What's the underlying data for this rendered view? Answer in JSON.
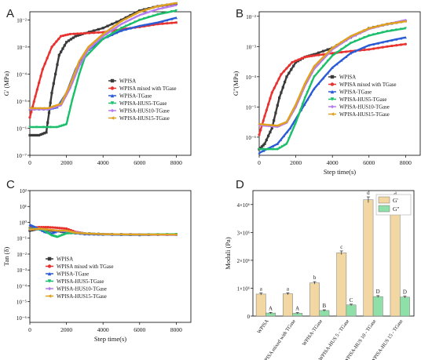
{
  "panels": {
    "A": {
      "letter": "A"
    },
    "B": {
      "letter": "B"
    },
    "C": {
      "letter": "C"
    },
    "D": {
      "letter": "D"
    }
  },
  "colors": {
    "WPISA": "#3a3a3a",
    "WPISA mixed with TGase": "#e8322f",
    "WPISA-TGase": "#2a5bd7",
    "WPISA-HUS5-TGase": "#1bbf6b",
    "WPISA-HUS10-TGase": "#b57bee",
    "WPISA-HUS15-TGase": "#e0a020",
    "bar_G1": "#f2d7a2",
    "bar_G2": "#8fe0a8"
  },
  "chart_data": [
    {
      "panel": "A",
      "type": "line",
      "title": "",
      "xlabel": "",
      "ylabel": "G' (MPa)",
      "xlim": [
        0,
        8800
      ],
      "ylim_log10": [
        -7,
        -1.7
      ],
      "y_scale": "log",
      "x_ticks": [
        0,
        2000,
        4000,
        6000,
        8000
      ],
      "y_tick_labels": [
        "10⁻⁷",
        "10⁻⁶",
        "10⁻⁵",
        "10⁻⁴",
        "10⁻³",
        "10⁻²"
      ],
      "legend_position": "center-right",
      "series": [
        {
          "name": "WPISA",
          "points": [
            [
              0,
              5.5e-07
            ],
            [
              500,
              5.5e-07
            ],
            [
              900,
              7e-07
            ],
            [
              1200,
              2e-05
            ],
            [
              1600,
              0.0005
            ],
            [
              2000,
              0.0015
            ],
            [
              2500,
              0.0025
            ],
            [
              3000,
              0.0032
            ],
            [
              4000,
              0.005
            ],
            [
              5000,
              0.01
            ],
            [
              6000,
              0.022
            ],
            [
              7000,
              0.032
            ],
            [
              8000,
              0.04
            ]
          ]
        },
        {
          "name": "WPISA mixed with TGase",
          "points": [
            [
              0,
              2.5e-06
            ],
            [
              300,
              1.5e-05
            ],
            [
              700,
              0.00015
            ],
            [
              1200,
              0.001
            ],
            [
              1700,
              0.0025
            ],
            [
              2200,
              0.003
            ],
            [
              3000,
              0.0032
            ],
            [
              4000,
              0.0035
            ],
            [
              5000,
              0.0045
            ],
            [
              6000,
              0.0055
            ],
            [
              7000,
              0.007
            ],
            [
              8000,
              0.008
            ]
          ]
        },
        {
          "name": "WPISA-TGase",
          "points": [
            [
              0,
              5e-06
            ],
            [
              1000,
              5e-06
            ],
            [
              1500,
              6e-06
            ],
            [
              2000,
              2e-05
            ],
            [
              2500,
              0.00015
            ],
            [
              3000,
              0.0006
            ],
            [
              4000,
              0.002
            ],
            [
              5000,
              0.004
            ],
            [
              6000,
              0.006
            ],
            [
              7000,
              0.008
            ],
            [
              8000,
              0.012
            ]
          ]
        },
        {
          "name": "WPISA-HUS5-TGase",
          "points": [
            [
              0,
              1.1e-06
            ],
            [
              1500,
              1.1e-06
            ],
            [
              2000,
              1.4e-06
            ],
            [
              2300,
              1e-05
            ],
            [
              2700,
              0.0001
            ],
            [
              3000,
              0.0004
            ],
            [
              4000,
              0.002
            ],
            [
              5000,
              0.005
            ],
            [
              6000,
              0.01
            ],
            [
              7000,
              0.016
            ],
            [
              8000,
              0.022
            ]
          ]
        },
        {
          "name": "WPISA-HUS10-TGase",
          "points": [
            [
              0,
              5e-06
            ],
            [
              1000,
              5e-06
            ],
            [
              1700,
              7e-06
            ],
            [
              2200,
              3e-05
            ],
            [
              2700,
              0.0002
            ],
            [
              3200,
              0.0008
            ],
            [
              4000,
              0.0025
            ],
            [
              5000,
              0.007
            ],
            [
              6000,
              0.015
            ],
            [
              7000,
              0.025
            ],
            [
              8000,
              0.035
            ]
          ]
        },
        {
          "name": "WPISA-HUS15-TGase",
          "points": [
            [
              0,
              5.5e-06
            ],
            [
              1000,
              5.5e-06
            ],
            [
              1700,
              8e-06
            ],
            [
              2200,
              4e-05
            ],
            [
              2700,
              0.0003
            ],
            [
              3200,
              0.001
            ],
            [
              4000,
              0.003
            ],
            [
              5000,
              0.009
            ],
            [
              6000,
              0.02
            ],
            [
              7000,
              0.032
            ],
            [
              8000,
              0.042
            ]
          ]
        }
      ]
    },
    {
      "panel": "B",
      "type": "line",
      "title": "",
      "xlabel": "Step time(s)",
      "ylabel": "G\"(MPa)",
      "xlim": [
        0,
        8800
      ],
      "ylim_log10": [
        -6.6,
        -1.85
      ],
      "y_scale": "log",
      "x_ticks": [
        0,
        2000,
        4000,
        6000,
        8000
      ],
      "y_tick_labels": [
        "10⁻⁶",
        "10⁻⁵",
        "10⁻⁴",
        "10⁻³",
        "10⁻²"
      ],
      "legend_position": "center-right",
      "series": [
        {
          "name": "WPISA",
          "points": [
            [
              0,
              4e-07
            ],
            [
              300,
              6e-07
            ],
            [
              700,
              2e-06
            ],
            [
              1100,
              2e-05
            ],
            [
              1500,
              0.0001
            ],
            [
              2000,
              0.0003
            ],
            [
              2500,
              0.00045
            ],
            [
              3000,
              0.00055
            ],
            [
              4000,
              0.0009
            ],
            [
              5000,
              0.002
            ],
            [
              6000,
              0.004
            ],
            [
              7000,
              0.0055
            ],
            [
              8000,
              0.007
            ]
          ]
        },
        {
          "name": "WPISA mixed with TGase",
          "points": [
            [
              0,
              1.2e-06
            ],
            [
              300,
              5e-06
            ],
            [
              700,
              3e-05
            ],
            [
              1200,
              0.00012
            ],
            [
              1800,
              0.0003
            ],
            [
              2500,
              0.00045
            ],
            [
              3000,
              0.0005
            ],
            [
              4000,
              0.0006
            ],
            [
              5000,
              0.0007
            ],
            [
              6000,
              0.0008
            ],
            [
              7000,
              0.001
            ],
            [
              8000,
              0.0012
            ]
          ]
        },
        {
          "name": "WPISA-TGase",
          "points": [
            [
              0,
              3e-07
            ],
            [
              1000,
              6e-07
            ],
            [
              1700,
              2e-06
            ],
            [
              2300,
              8e-06
            ],
            [
              3000,
              4e-05
            ],
            [
              4000,
              0.0002
            ],
            [
              5000,
              0.0006
            ],
            [
              6000,
              0.0011
            ],
            [
              7000,
              0.0015
            ],
            [
              8000,
              0.002
            ]
          ]
        },
        {
          "name": "WPISA-HUS5-TGase",
          "points": [
            [
              0,
              4e-07
            ],
            [
              1000,
              4e-07
            ],
            [
              1500,
              6e-07
            ],
            [
              2000,
              3e-06
            ],
            [
              2500,
              2e-05
            ],
            [
              3000,
              0.0001
            ],
            [
              4000,
              0.0005
            ],
            [
              5000,
              0.0013
            ],
            [
              6000,
              0.0023
            ],
            [
              7000,
              0.0032
            ],
            [
              8000,
              0.004
            ]
          ]
        },
        {
          "name": "WPISA-HUS10-TGase",
          "points": [
            [
              0,
              2.5e-06
            ],
            [
              1000,
              2.2e-06
            ],
            [
              1500,
              3e-06
            ],
            [
              2000,
              1e-05
            ],
            [
              2500,
              5e-05
            ],
            [
              3000,
              0.00018
            ],
            [
              4000,
              0.0008
            ],
            [
              5000,
              0.002
            ],
            [
              6000,
              0.0038
            ],
            [
              7000,
              0.0055
            ],
            [
              8000,
              0.0075
            ]
          ]
        },
        {
          "name": "WPISA-HUS15-TGase",
          "points": [
            [
              0,
              2.7e-06
            ],
            [
              1000,
              2.4e-06
            ],
            [
              1500,
              3.2e-06
            ],
            [
              2000,
              1.2e-05
            ],
            [
              2500,
              6e-05
            ],
            [
              3000,
              0.00022
            ],
            [
              4000,
              0.0009
            ],
            [
              5000,
              0.0022
            ],
            [
              6000,
              0.004
            ],
            [
              7000,
              0.0056
            ],
            [
              8000,
              0.0068
            ]
          ]
        }
      ]
    },
    {
      "panel": "C",
      "type": "line",
      "title": "",
      "xlabel": "Step time(s)",
      "ylabel": "Tan (δ)",
      "xlim": [
        0,
        8800
      ],
      "ylim_log10": [
        -6.3,
        2
      ],
      "y_scale": "log",
      "x_ticks": [
        0,
        2000,
        4000,
        6000,
        8000
      ],
      "y_tick_labels": [
        "10⁻⁶",
        "10⁻⁵",
        "10⁻⁴",
        "10⁻³",
        "10⁻²",
        "10⁻¹",
        "10⁰",
        "10¹",
        "10²"
      ],
      "legend_position": "center-left",
      "series": [
        {
          "name": "WPISA",
          "points": [
            [
              0,
              0.3
            ],
            [
              500,
              0.4
            ],
            [
              900,
              0.35
            ],
            [
              1200,
              0.3
            ],
            [
              1600,
              0.28
            ],
            [
              2000,
              0.22
            ],
            [
              3000,
              0.2
            ],
            [
              4000,
              0.18
            ],
            [
              6000,
              0.17
            ],
            [
              8000,
              0.17
            ]
          ]
        },
        {
          "name": "WPISA mixed with TGase",
          "points": [
            [
              0,
              0.45
            ],
            [
              500,
              0.5
            ],
            [
              1000,
              0.5
            ],
            [
              1500,
              0.45
            ],
            [
              2000,
              0.4
            ],
            [
              2500,
              0.25
            ],
            [
              3000,
              0.2
            ],
            [
              4000,
              0.18
            ],
            [
              6000,
              0.17
            ],
            [
              8000,
              0.17
            ]
          ]
        },
        {
          "name": "WPISA-TGase",
          "points": [
            [
              0,
              0.7
            ],
            [
              300,
              0.5
            ],
            [
              800,
              0.25
            ],
            [
              1200,
              0.2
            ],
            [
              1600,
              0.3
            ],
            [
              2000,
              0.25
            ],
            [
              3000,
              0.18
            ],
            [
              4000,
              0.17
            ],
            [
              6000,
              0.16
            ],
            [
              8000,
              0.17
            ]
          ]
        },
        {
          "name": "WPISA-HUS5-TGase",
          "points": [
            [
              0,
              0.4
            ],
            [
              700,
              0.35
            ],
            [
              1200,
              0.15
            ],
            [
              1500,
              0.12
            ],
            [
              2000,
              0.2
            ],
            [
              2500,
              0.22
            ],
            [
              3000,
              0.2
            ],
            [
              4000,
              0.18
            ],
            [
              6000,
              0.17
            ],
            [
              8000,
              0.18
            ]
          ]
        },
        {
          "name": "WPISA-HUS10-TGase",
          "points": [
            [
              0,
              0.35
            ],
            [
              500,
              0.4
            ],
            [
              1000,
              0.35
            ],
            [
              1500,
              0.3
            ],
            [
              2000,
              0.28
            ],
            [
              3000,
              0.2
            ],
            [
              4000,
              0.18
            ],
            [
              6000,
              0.17
            ],
            [
              8000,
              0.16
            ]
          ]
        },
        {
          "name": "WPISA-HUS15-TGase",
          "points": [
            [
              0,
              0.35
            ],
            [
              500,
              0.4
            ],
            [
              1000,
              0.35
            ],
            [
              1500,
              0.3
            ],
            [
              2000,
              0.3
            ],
            [
              2500,
              0.22
            ],
            [
              3000,
              0.2
            ],
            [
              4000,
              0.18
            ],
            [
              6000,
              0.17
            ],
            [
              8000,
              0.17
            ]
          ]
        }
      ]
    },
    {
      "panel": "D",
      "type": "bar",
      "title": "",
      "xlabel": "",
      "ylabel": "Moduli (Pa)",
      "ylim": [
        0,
        4500000.0
      ],
      "y_tick_labels": [
        "0",
        "1×10⁶",
        "2×10⁶",
        "3×10⁶",
        "4×10⁶"
      ],
      "legend_position": "top-right",
      "categories": [
        "WPISA",
        "WPISA mixed with TGase",
        "WPISA-TGase",
        "WPISA-HUS 5 - TGase",
        "WPISA-HUS 10 - TGase",
        "WPISA-HUS 15 - TGase"
      ],
      "series": [
        {
          "name": "G'",
          "values": [
            790000,
            800000,
            1190000,
            2270000,
            4170000,
            4130000
          ],
          "letters": [
            "a",
            "a",
            "b",
            "c",
            "d",
            "d"
          ]
        },
        {
          "name": "G\"",
          "values": [
            110000,
            100000,
            200000,
            400000,
            700000,
            680000
          ],
          "letters": [
            "A",
            "A",
            "B",
            "C",
            "D",
            "D"
          ]
        }
      ]
    }
  ]
}
